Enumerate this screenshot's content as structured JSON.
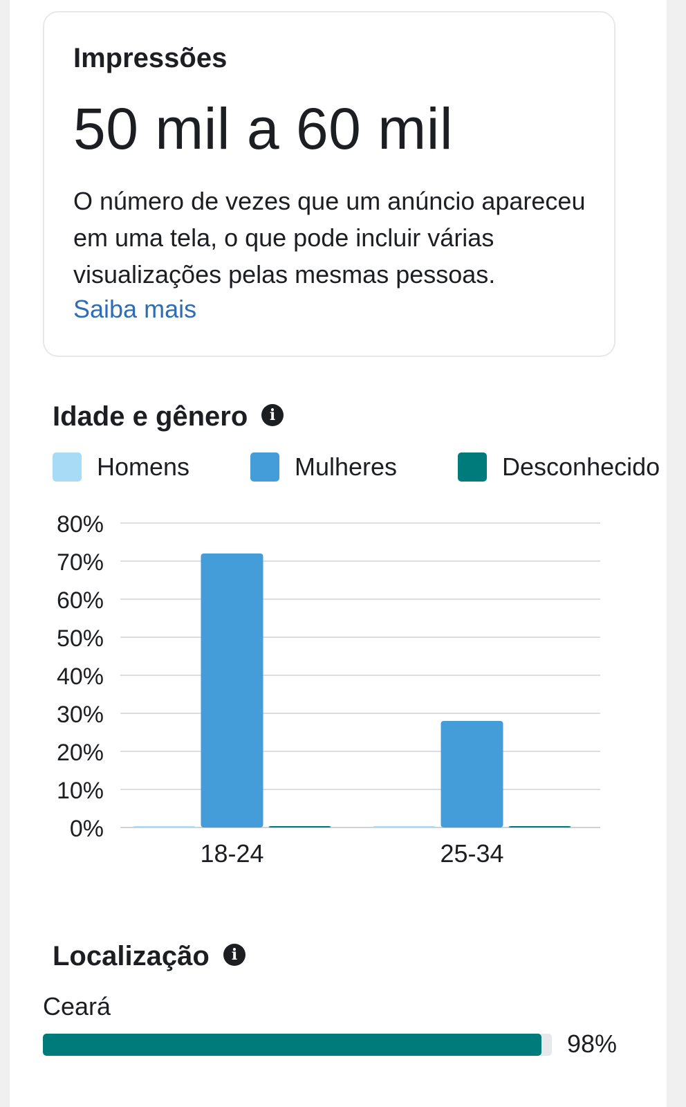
{
  "impressions": {
    "label": "Impressões",
    "value": "50 mil a 60 mil",
    "description": "O número de vezes que um anúncio apareceu em uma tela, o que pode incluir várias visualizações pelas mesmas pessoas.",
    "link": "Saiba mais"
  },
  "age_gender": {
    "title": "Idade e gênero",
    "info_icon": "info-icon"
  },
  "legend": [
    {
      "label": "Homens",
      "color": "#a8dcf6"
    },
    {
      "label": "Mulheres",
      "color": "#449cd8"
    },
    {
      "label": "Desconhecido",
      "color": "#007b7b"
    }
  ],
  "chart_data": {
    "type": "bar",
    "categories": [
      "18-24",
      "25-34"
    ],
    "series": [
      {
        "name": "Homens",
        "color": "#a8dcf6",
        "values": [
          0.2,
          0.2
        ]
      },
      {
        "name": "Mulheres",
        "color": "#449cd8",
        "values": [
          72,
          28
        ]
      },
      {
        "name": "Desconhecido",
        "color": "#007b7b",
        "values": [
          0.3,
          0.3
        ]
      }
    ],
    "y_ticks": [
      "0%",
      "10%",
      "20%",
      "30%",
      "40%",
      "50%",
      "60%",
      "70%",
      "80%"
    ],
    "ylim": [
      0,
      80
    ],
    "grid": true,
    "legend_position": "top"
  },
  "location": {
    "title": "Localização",
    "info_icon": "info-icon",
    "items": [
      {
        "label": "Ceará",
        "percent_text": "98%",
        "percent": 98,
        "color": "#007b7b"
      }
    ]
  }
}
